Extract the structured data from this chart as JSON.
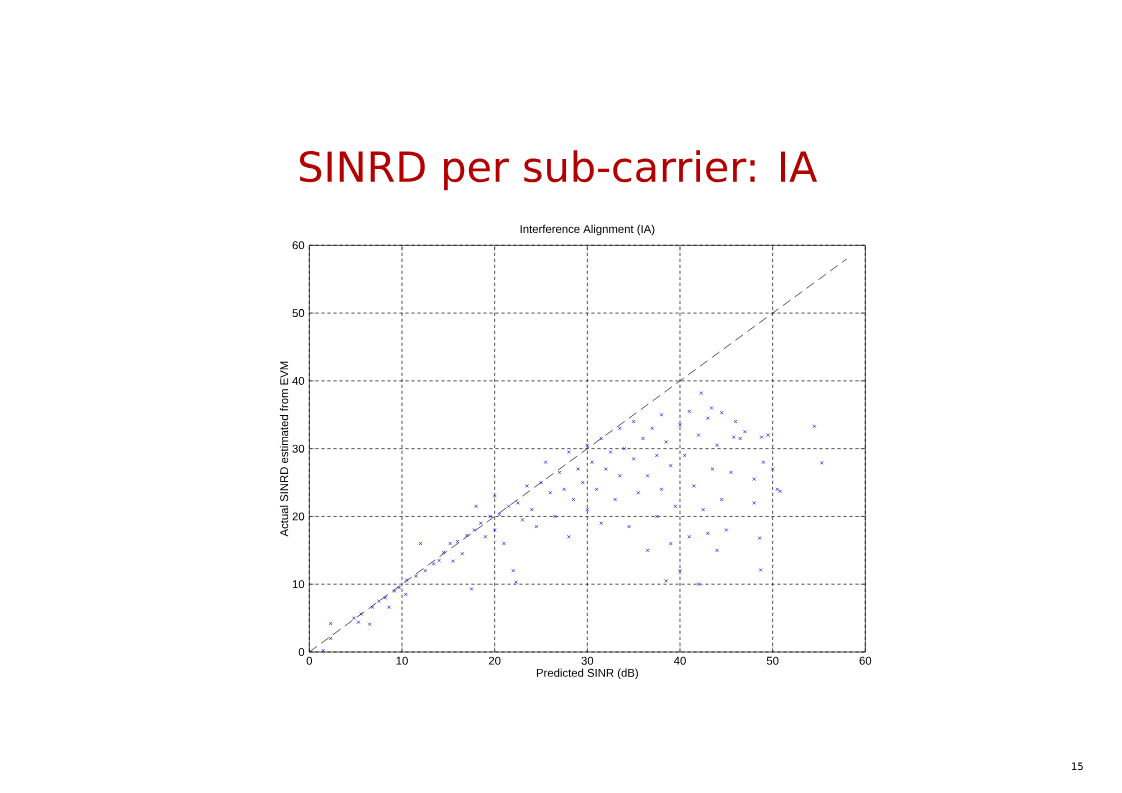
{
  "chart_data": {
    "type": "scatter",
    "title": "SINRD per sub-carrier: IA",
    "subtitle": "Interference Alignment (IA)",
    "xlabel": "Predicted SINR (dB)",
    "ylabel": "Actual SINRD estimated from EVM",
    "annotations": [
      "15"
    ],
    "xlim": [
      0,
      60
    ],
    "ylim": [
      0,
      60
    ],
    "xticks": [
      0,
      10,
      20,
      30,
      40,
      50,
      60
    ],
    "yticks": [
      0,
      10,
      20,
      30,
      40,
      50,
      60
    ],
    "grid": true,
    "series": [
      {
        "color": "#0000ff",
        "marker": "cross",
        "x": [
          1.5,
          2.3,
          2.3,
          4.8,
          5.3,
          5.6,
          6.5,
          6.8,
          7.5,
          8.2,
          8.6,
          9.2,
          9.7,
          10.4,
          10.5,
          11.5,
          12.0,
          12.5,
          13.4,
          14.0,
          14.5,
          15.2,
          15.5,
          16.0,
          16.5,
          17.0,
          17.5,
          17.8,
          18.0,
          18.5,
          19.0,
          19.5,
          20.0,
          20.0,
          20.5,
          21.0,
          21.5,
          22.0,
          22.3,
          22.5,
          23.0,
          23.5,
          24.0,
          24.5,
          25.0,
          25.5,
          26.0,
          26.5,
          27.0,
          27.5,
          28.0,
          28.0,
          28.5,
          29.0,
          29.5,
          30.0,
          30.0,
          30.5,
          31.0,
          31.5,
          31.5,
          32.0,
          32.5,
          33.0,
          33.5,
          33.5,
          34.0,
          34.5,
          35.0,
          35.0,
          35.5,
          36.0,
          36.5,
          36.5,
          37.0,
          37.5,
          37.5,
          38.0,
          38.0,
          38.5,
          38.5,
          39.0,
          39.0,
          39.5,
          40.0,
          40.0,
          40.5,
          41.0,
          41.0,
          41.5,
          42.0,
          42.0,
          42.5,
          43.0,
          43.0,
          43.5,
          44.0,
          44.0,
          44.5,
          45.0,
          45.5,
          45.8,
          46.0,
          46.5,
          47.0,
          48.0,
          48.0,
          48.6,
          48.7,
          48.8,
          49.0,
          49.5,
          50.0,
          50.5,
          50.8,
          54.5,
          55.3,
          43.4,
          42.3,
          44.5
        ],
        "values": [
          0.2,
          2.0,
          4.2,
          5.0,
          4.4,
          5.6,
          4.1,
          6.6,
          7.5,
          8.0,
          6.6,
          9.0,
          9.5,
          8.5,
          10.6,
          11.2,
          16.0,
          12.0,
          13.0,
          13.5,
          14.7,
          16.0,
          13.4,
          16.3,
          14.5,
          17.2,
          9.3,
          18.0,
          21.5,
          19.0,
          17.0,
          20.0,
          23.0,
          18.0,
          20.3,
          16.0,
          21.5,
          12.0,
          10.3,
          22.0,
          19.5,
          24.5,
          21.0,
          18.5,
          25.0,
          28.0,
          23.5,
          20.0,
          26.5,
          24.0,
          29.5,
          17.0,
          22.5,
          27.0,
          25.0,
          30.5,
          21.0,
          28.0,
          24.0,
          31.5,
          19.0,
          27.0,
          29.5,
          22.5,
          33.0,
          26.0,
          30.0,
          18.5,
          28.5,
          34.0,
          23.5,
          31.5,
          15.0,
          26.0,
          33.0,
          20.0,
          29.0,
          35.0,
          24.0,
          10.5,
          31.0,
          16.0,
          27.5,
          21.5,
          33.5,
          12.0,
          29.0,
          17.0,
          35.5,
          24.5,
          32.0,
          10.0,
          21.0,
          17.5,
          34.5,
          27.0,
          30.5,
          15.0,
          22.5,
          18.0,
          26.5,
          31.7,
          34.0,
          31.5,
          32.5,
          22.0,
          25.5,
          16.8,
          12.1,
          31.7,
          28.0,
          32.0,
          27.0,
          24.0,
          23.7,
          33.3,
          27.9,
          36.0,
          38.2,
          35.3
        ]
      },
      {
        "type": "line",
        "color": "#000000",
        "marker": "none",
        "line_style": "dashed",
        "x": [
          0,
          58
        ],
        "values": [
          0,
          58
        ]
      }
    ]
  }
}
